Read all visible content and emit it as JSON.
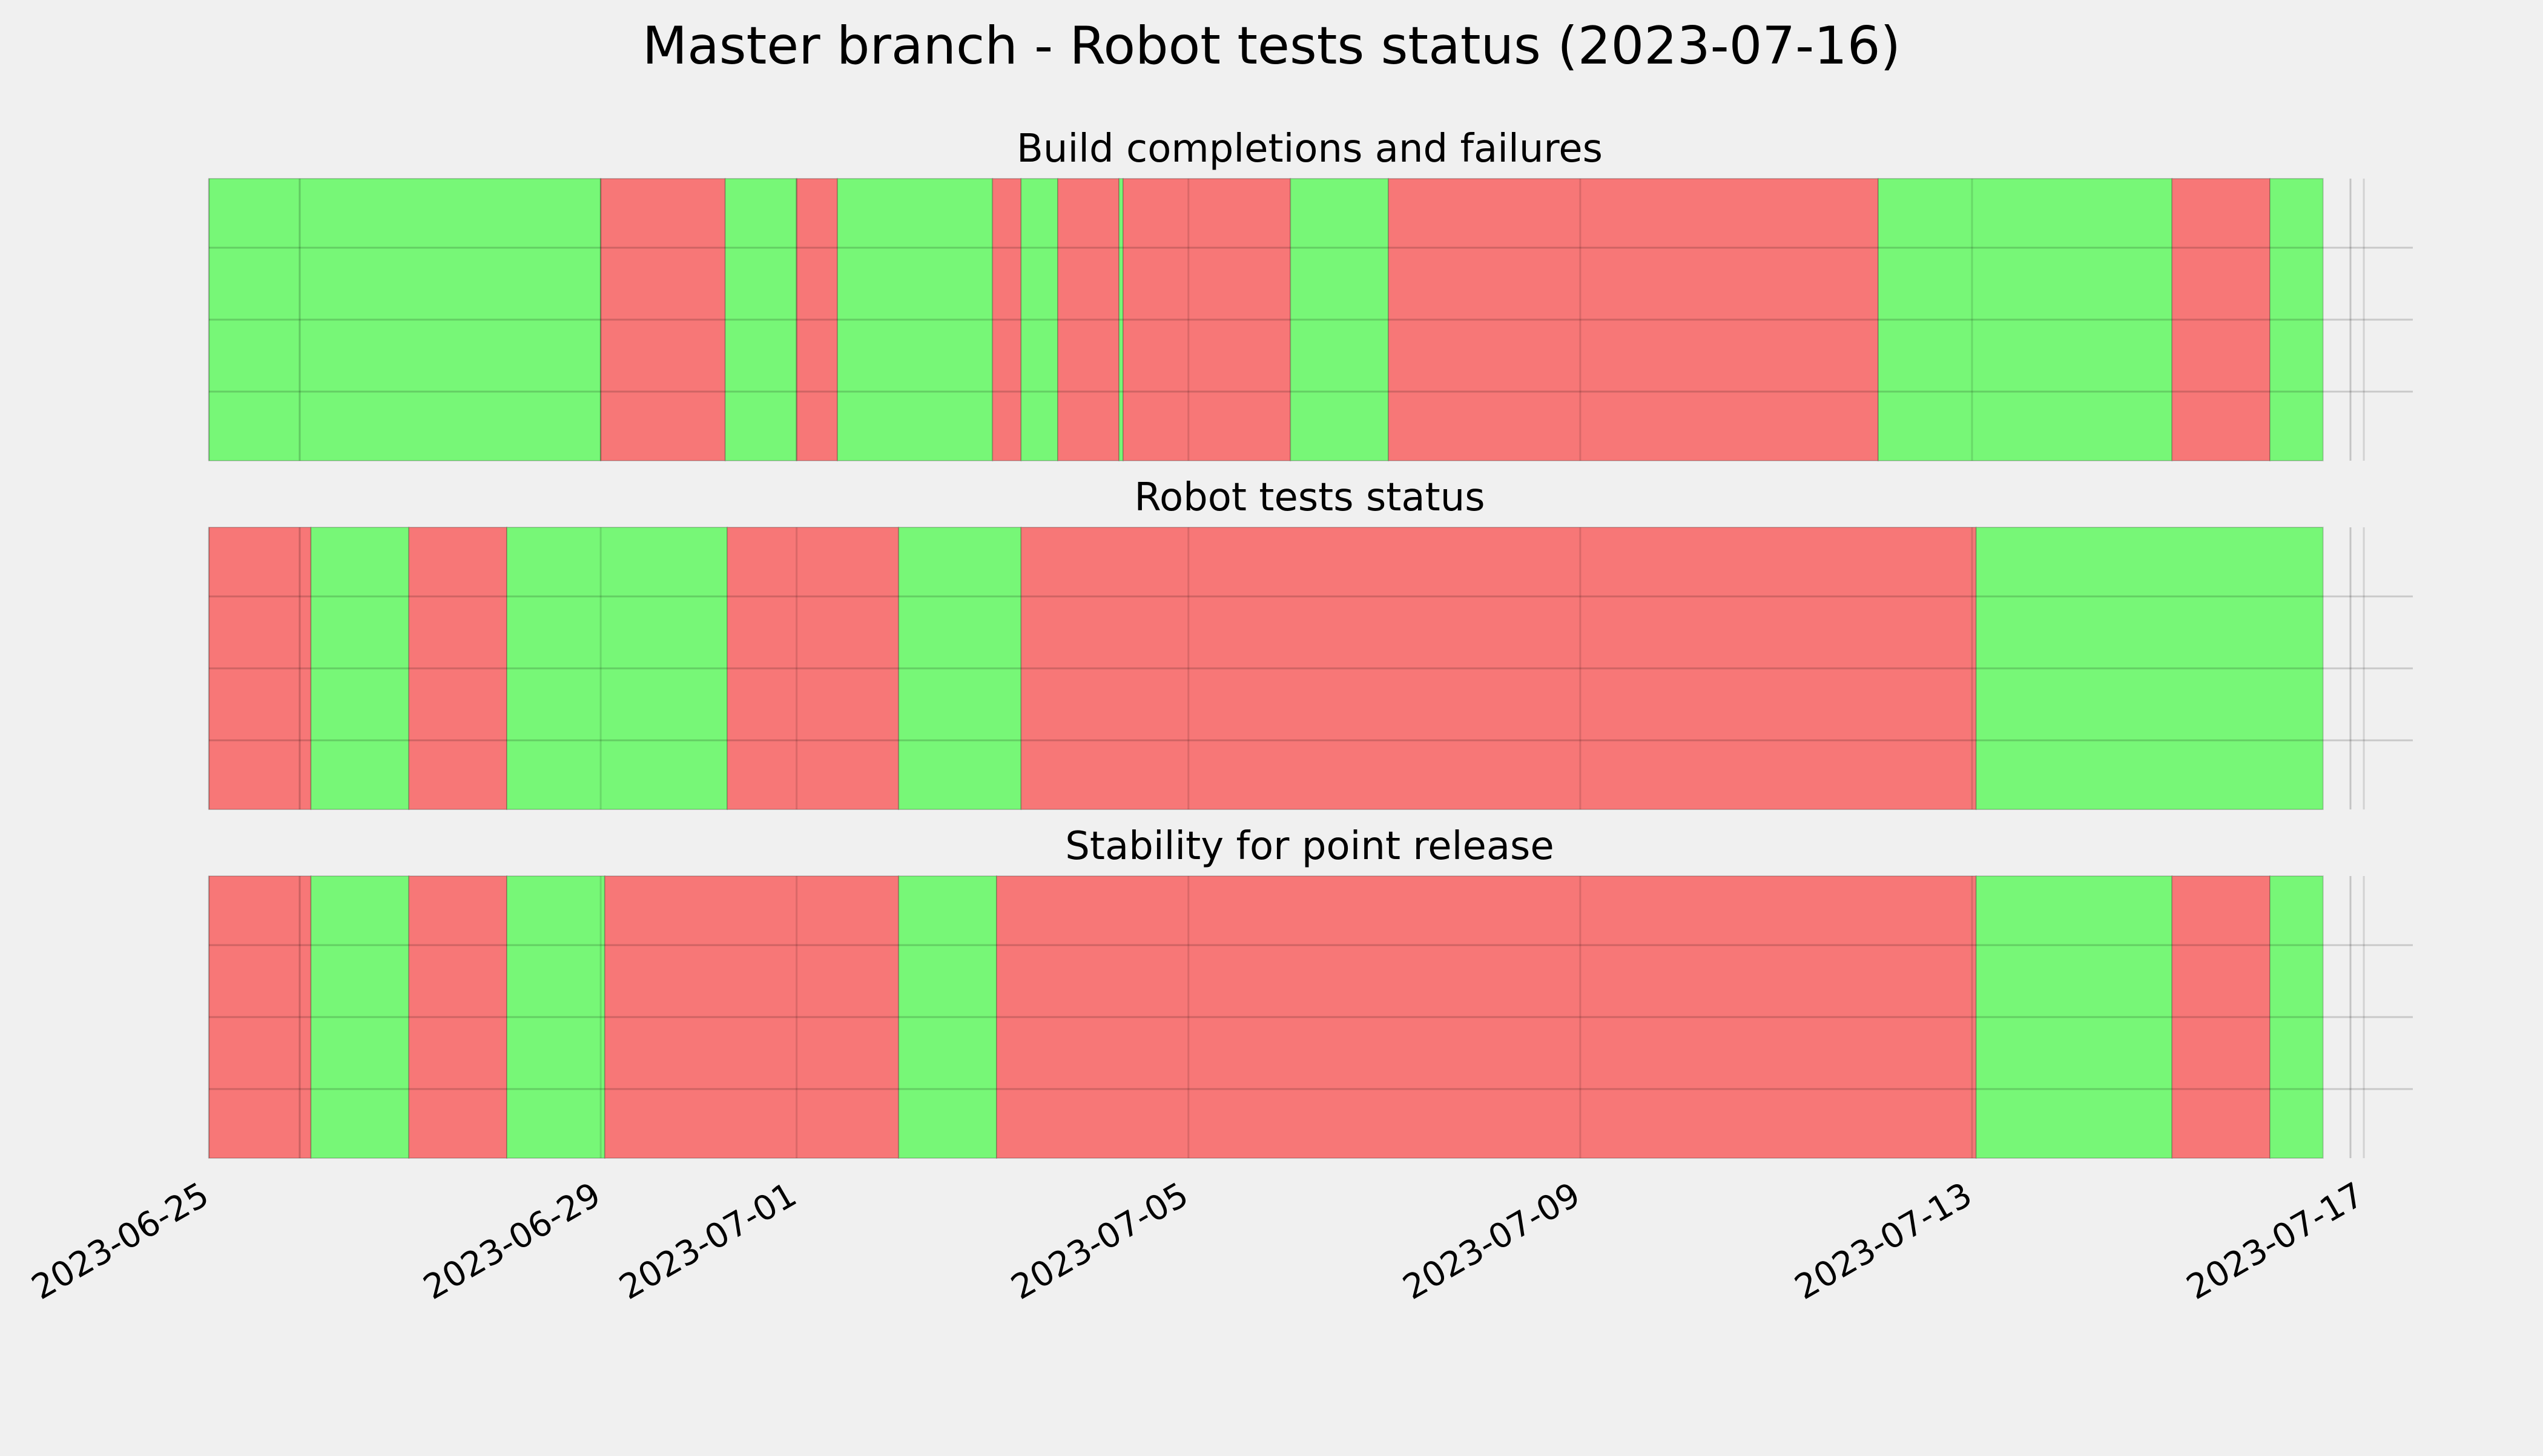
{
  "chart_data": {
    "type": "timeline",
    "title": "Master branch - Robot tests status (2023-07-16)",
    "x_axis": {
      "type": "date",
      "range": [
        "2023-06-25",
        "2023-07-17T12:00"
      ],
      "tick_labels": [
        "2023-06-25",
        "2023-06-29",
        "2023-07-01",
        "2023-07-05",
        "2023-07-09",
        "2023-07-13",
        "2023-07-17"
      ],
      "tick_values": [
        "2023-06-25",
        "2023-06-29",
        "2023-07-01",
        "2023-07-05",
        "2023-07-09",
        "2023-07-13",
        "2023-07-17"
      ],
      "tick_label_rotation_deg": 30
    },
    "grid": true,
    "status_colors": {
      "pass": "#77f777",
      "fail": "#f77777"
    },
    "panels": [
      {
        "title": "Build completions and failures",
        "segments": [
          {
            "start": "2023-06-25T00:00",
            "end": "2023-06-29T00:00",
            "status": "pass"
          },
          {
            "start": "2023-06-29T00:00",
            "end": "2023-06-30T06:30",
            "status": "fail"
          },
          {
            "start": "2023-06-30T06:30",
            "end": "2023-07-01T00:00",
            "status": "pass"
          },
          {
            "start": "2023-07-01T00:00",
            "end": "2023-07-01T10:00",
            "status": "fail"
          },
          {
            "start": "2023-07-01T10:00",
            "end": "2023-07-03T00:00",
            "status": "pass"
          },
          {
            "start": "2023-07-03T00:00",
            "end": "2023-07-03T07:00",
            "status": "fail"
          },
          {
            "start": "2023-07-03T07:00",
            "end": "2023-07-03T16:00",
            "status": "pass"
          },
          {
            "start": "2023-07-03T16:00",
            "end": "2023-07-04T07:00",
            "status": "fail"
          },
          {
            "start": "2023-07-04T07:00",
            "end": "2023-07-04T08:00",
            "status": "pass"
          },
          {
            "start": "2023-07-04T08:00",
            "end": "2023-07-06T01:00",
            "status": "fail"
          },
          {
            "start": "2023-07-06T01:00",
            "end": "2023-07-07T01:00",
            "status": "pass"
          },
          {
            "start": "2023-07-07T01:00",
            "end": "2023-07-12T01:00",
            "status": "fail"
          },
          {
            "start": "2023-07-12T01:00",
            "end": "2023-07-15T01:00",
            "status": "pass"
          },
          {
            "start": "2023-07-15T01:00",
            "end": "2023-07-16T01:00",
            "status": "fail"
          },
          {
            "start": "2023-07-16T01:00",
            "end": "2023-07-16T14:00",
            "status": "pass"
          }
        ]
      },
      {
        "title": "Robot tests status",
        "segments": [
          {
            "start": "2023-06-25T00:00",
            "end": "2023-06-26T01:00",
            "status": "fail"
          },
          {
            "start": "2023-06-26T01:00",
            "end": "2023-06-27T01:00",
            "status": "pass"
          },
          {
            "start": "2023-06-27T01:00",
            "end": "2023-06-28T01:00",
            "status": "fail"
          },
          {
            "start": "2023-06-28T01:00",
            "end": "2023-06-30T07:00",
            "status": "pass"
          },
          {
            "start": "2023-06-30T07:00",
            "end": "2023-07-02T01:00",
            "status": "fail"
          },
          {
            "start": "2023-07-02T01:00",
            "end": "2023-07-03T07:00",
            "status": "pass"
          },
          {
            "start": "2023-07-03T07:00",
            "end": "2023-07-13T01:00",
            "status": "fail"
          },
          {
            "start": "2023-07-13T01:00",
            "end": "2023-07-16T14:00",
            "status": "pass"
          }
        ]
      },
      {
        "title": "Stability for point release",
        "segments": [
          {
            "start": "2023-06-25T00:00",
            "end": "2023-06-26T01:00",
            "status": "fail"
          },
          {
            "start": "2023-06-26T01:00",
            "end": "2023-06-27T01:00",
            "status": "pass"
          },
          {
            "start": "2023-06-27T01:00",
            "end": "2023-06-28T01:00",
            "status": "fail"
          },
          {
            "start": "2023-06-28T01:00",
            "end": "2023-06-29T01:00",
            "status": "pass"
          },
          {
            "start": "2023-06-29T01:00",
            "end": "2023-07-02T01:00",
            "status": "fail"
          },
          {
            "start": "2023-07-02T01:00",
            "end": "2023-07-03T01:00",
            "status": "pass"
          },
          {
            "start": "2023-07-03T01:00",
            "end": "2023-07-13T01:00",
            "status": "fail"
          },
          {
            "start": "2023-07-13T01:00",
            "end": "2023-07-15T01:00",
            "status": "pass"
          },
          {
            "start": "2023-07-15T01:00",
            "end": "2023-07-16T01:00",
            "status": "fail"
          },
          {
            "start": "2023-07-16T01:00",
            "end": "2023-07-16T14:00",
            "status": "pass"
          }
        ]
      }
    ]
  }
}
